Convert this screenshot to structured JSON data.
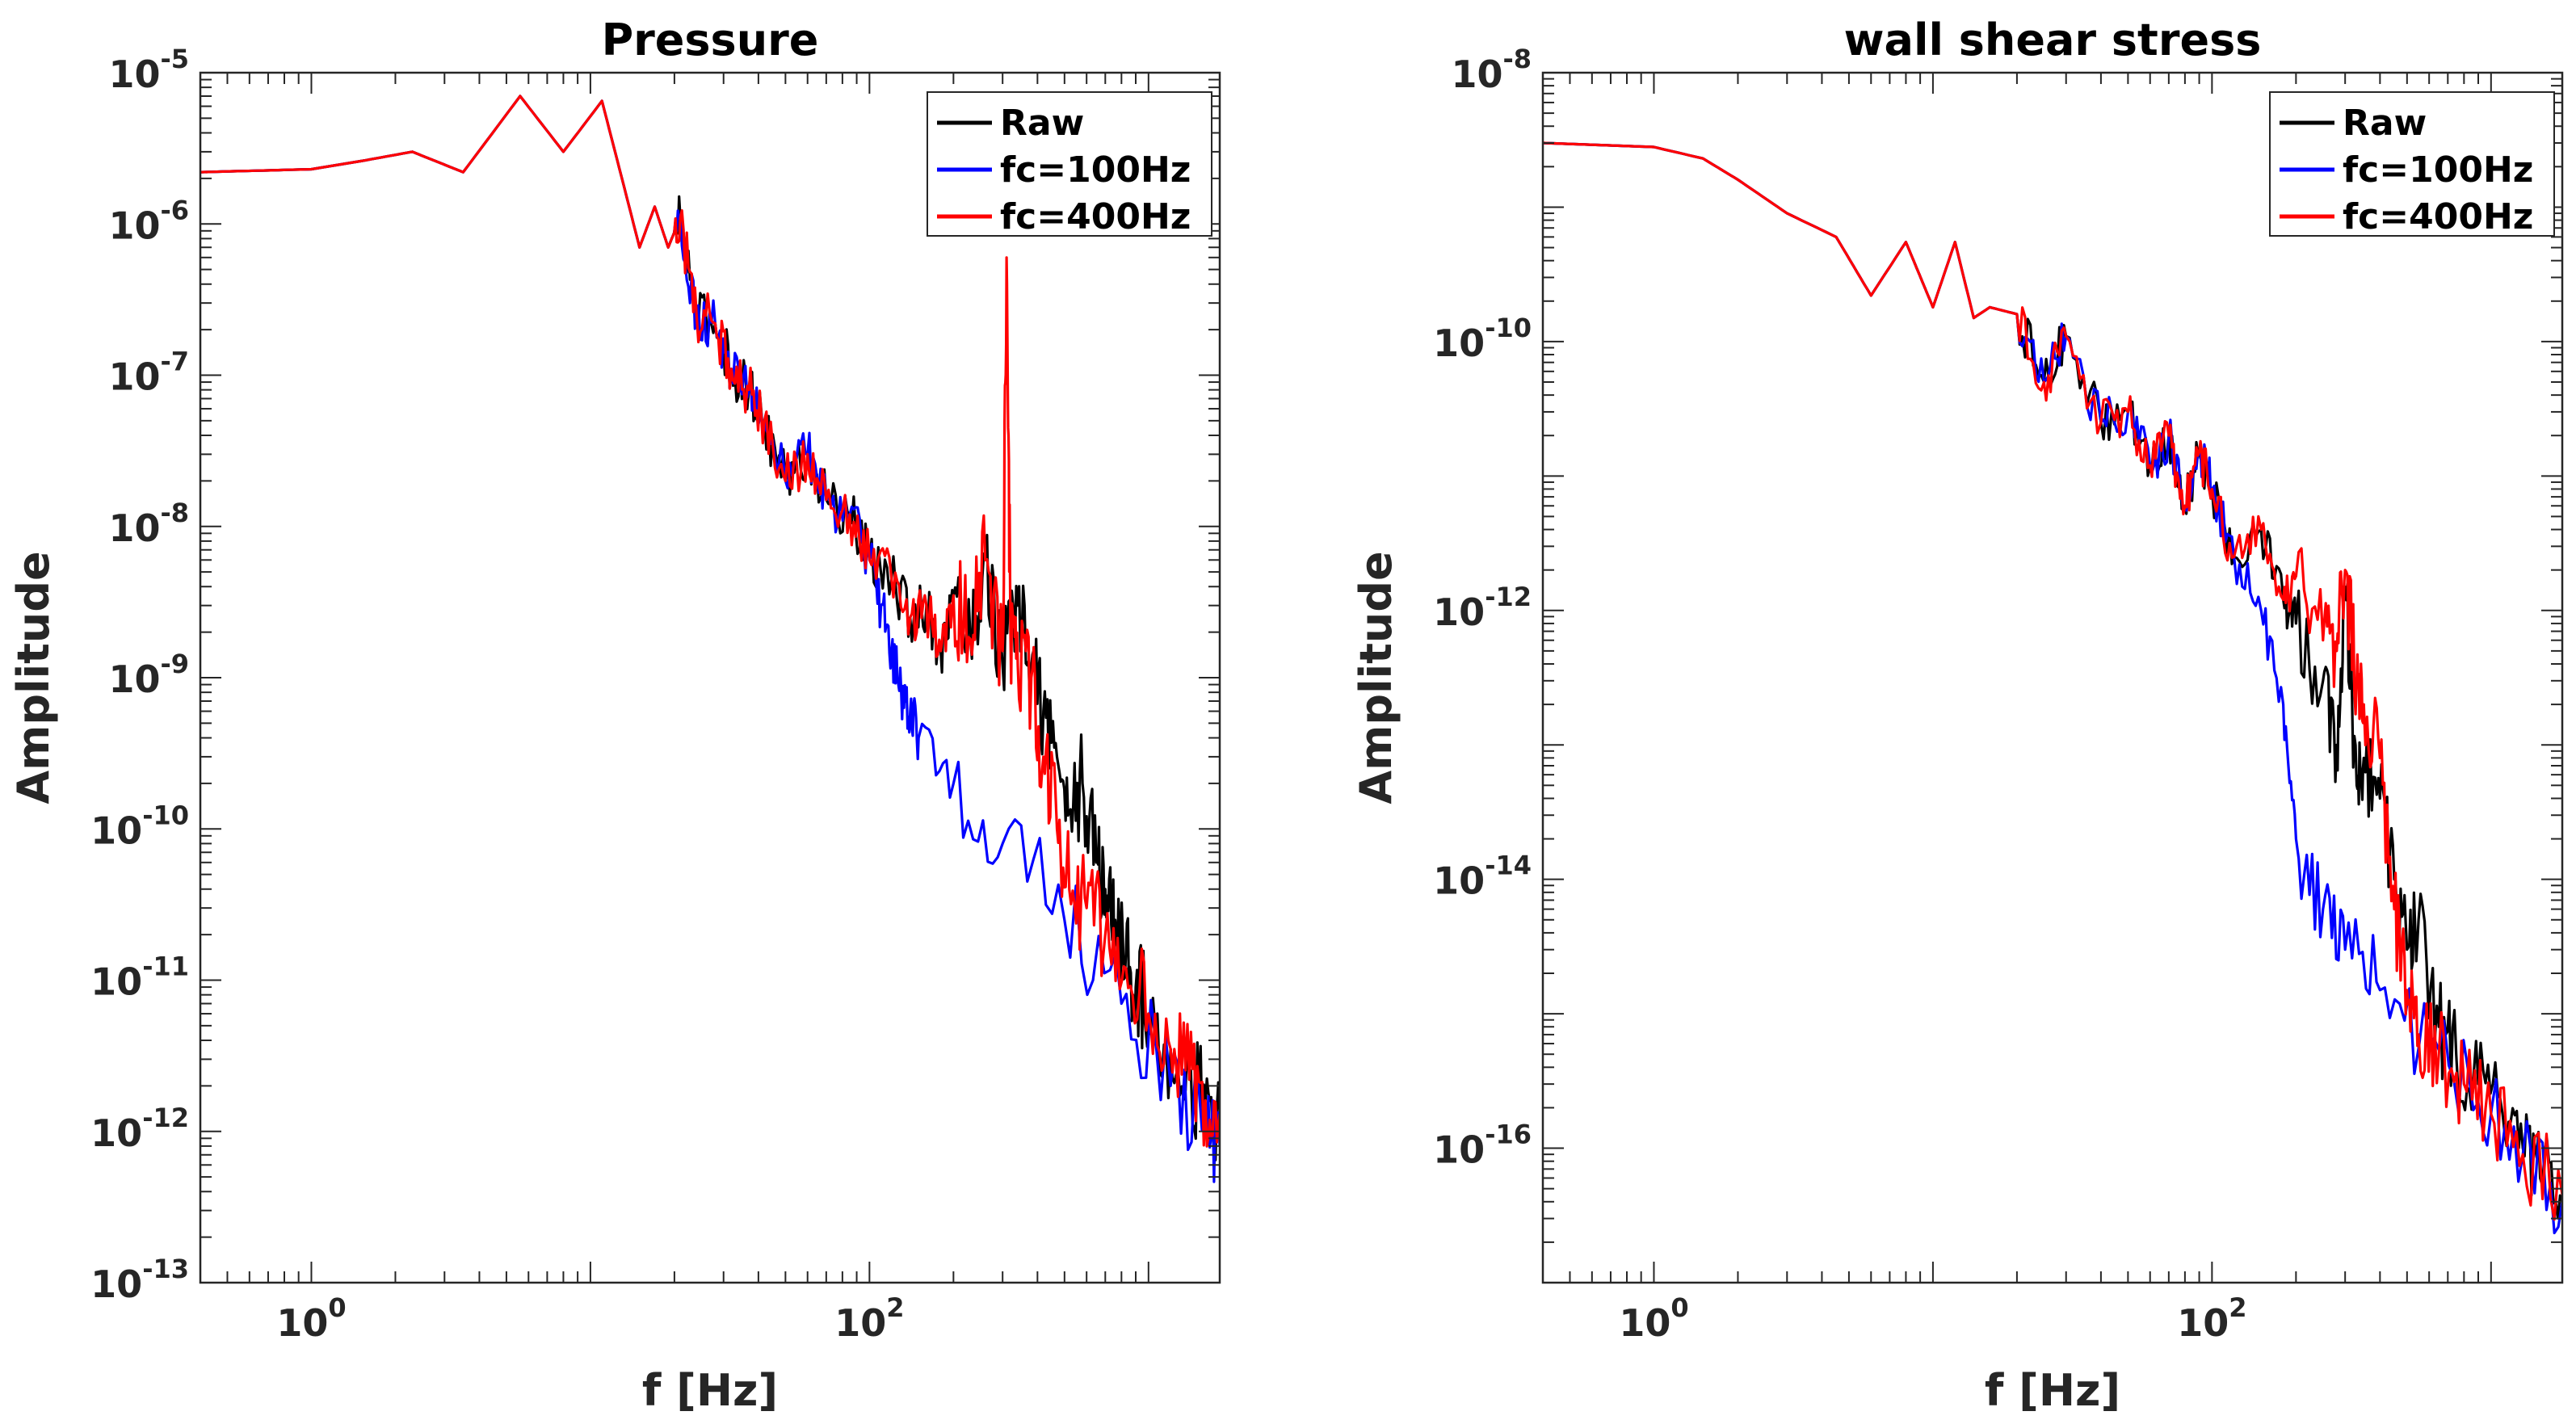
{
  "colors": {
    "raw": "#000000",
    "fc100": "#0000ff",
    "fc400": "#ff0000",
    "axis": "#262626"
  },
  "chart_data": [
    {
      "type": "line",
      "title": "Pressure",
      "xlabel": "f [Hz]",
      "ylabel": "Amplitude",
      "xscale": "log",
      "yscale": "log",
      "xlim": [
        0.4,
        1800
      ],
      "ylim": [
        1e-13,
        1e-05
      ],
      "xticks": [
        {
          "base": "10",
          "exp": "0",
          "value": 1
        },
        {
          "base": "10",
          "exp": "2",
          "value": 100
        }
      ],
      "yticks": [
        {
          "base": "10",
          "exp": "-13",
          "value": 1e-13
        },
        {
          "base": "10",
          "exp": "-12",
          "value": 1e-12
        },
        {
          "base": "10",
          "exp": "-11",
          "value": 1e-11
        },
        {
          "base": "10",
          "exp": "-10",
          "value": 1e-10
        },
        {
          "base": "10",
          "exp": "-9",
          "value": 1e-09
        },
        {
          "base": "10",
          "exp": "-8",
          "value": 1e-08
        },
        {
          "base": "10",
          "exp": "-7",
          "value": 1e-07
        },
        {
          "base": "10",
          "exp": "-6",
          "value": 1e-06
        },
        {
          "base": "10",
          "exp": "-5",
          "value": 1e-05
        }
      ],
      "legend": {
        "position": "top-right",
        "entries": [
          "Raw",
          "fc=100Hz",
          "fc=400Hz"
        ]
      },
      "grid": false,
      "series": [
        {
          "name": "Raw",
          "x": [
            0.4,
            1,
            1.5,
            2.3,
            3.5,
            5.6,
            8,
            11,
            13.5,
            15,
            17,
            19,
            21,
            24,
            28,
            32,
            37,
            42,
            50,
            60,
            70,
            85,
            100,
            120,
            140,
            160,
            180,
            200,
            230,
            260,
            300,
            340,
            380,
            420,
            470,
            520,
            580,
            650,
            700,
            760,
            830,
            900,
            1000,
            1200,
            1400,
            1600,
            1800
          ],
          "y": [
            2.2e-06,
            2.3e-06,
            2.6e-06,
            3e-06,
            2.2e-06,
            7e-06,
            3e-06,
            6.5e-06,
            1.5e-06,
            7e-07,
            1.3e-06,
            7e-07,
            1.1e-06,
            2.5e-07,
            2.2e-07,
            1.1e-07,
            8e-08,
            5e-08,
            2e-08,
            3e-08,
            1.5e-08,
            1.2e-08,
            6e-09,
            4.5e-09,
            2.5e-09,
            3e-09,
            1.5e-09,
            3.5e-09,
            1.8e-09,
            6e-09,
            1.2e-09,
            3e-09,
            1.2e-09,
            6e-10,
            3e-10,
            1.3e-10,
            2e-10,
            6e-11,
            4e-11,
            2.5e-11,
            1.5e-11,
            9e-12,
            6e-12,
            3.5e-12,
            2.2e-12,
            1.6e-12,
            1.3e-12
          ]
        },
        {
          "name": "fc=100Hz",
          "x": [
            0.4,
            1,
            1.5,
            2.3,
            3.5,
            5.6,
            8,
            11,
            13.5,
            15,
            17,
            19,
            21,
            24,
            28,
            32,
            37,
            42,
            50,
            60,
            70,
            85,
            100,
            110,
            120,
            130,
            140,
            150,
            200,
            300,
            500,
            800,
            1200,
            1600,
            1800
          ],
          "y": [
            2.2e-06,
            2.3e-06,
            2.6e-06,
            3e-06,
            2.2e-06,
            7e-06,
            3e-06,
            6.5e-06,
            1.5e-06,
            7e-07,
            1.3e-06,
            7e-07,
            1.1e-06,
            2.5e-07,
            2.2e-07,
            1.1e-07,
            8e-08,
            5e-08,
            2e-08,
            3e-08,
            1.5e-08,
            1.2e-08,
            6e-09,
            3e-09,
            1.5e-09,
            8e-10,
            6e-10,
            4e-10,
            2e-10,
            8e-11,
            2.5e-11,
            7e-12,
            2e-12,
            1.1e-12,
            8e-13
          ]
        },
        {
          "name": "fc=400Hz",
          "x": [
            0.4,
            1,
            1.5,
            2.3,
            3.5,
            5.6,
            8,
            11,
            13.5,
            15,
            17,
            19,
            21,
            24,
            28,
            32,
            37,
            42,
            50,
            60,
            70,
            85,
            100,
            120,
            140,
            160,
            180,
            200,
            230,
            260,
            300,
            310,
            320,
            340,
            380,
            420,
            470,
            520,
            600,
            700,
            830,
            1000,
            1200,
            1400,
            1600,
            1800
          ],
          "y": [
            2.2e-06,
            2.3e-06,
            2.6e-06,
            3e-06,
            2.2e-06,
            7e-06,
            3e-06,
            6.5e-06,
            1.5e-06,
            7e-07,
            1.3e-06,
            7e-07,
            1.1e-06,
            2.5e-07,
            2.2e-07,
            1.1e-07,
            8e-08,
            5e-08,
            2e-08,
            3e-08,
            1.5e-08,
            1.2e-08,
            6e-09,
            4.5e-09,
            2.5e-09,
            3e-09,
            1.5e-09,
            3.5e-09,
            1.8e-09,
            6e-09,
            1.5e-09,
            6e-07,
            2e-09,
            1.2e-09,
            1e-09,
            3e-10,
            1e-10,
            4e-11,
            3e-11,
            2e-11,
            1.2e-11,
            6e-12,
            3.5e-12,
            2.2e-12,
            1.6e-12,
            1.3e-12
          ]
        }
      ]
    },
    {
      "type": "line",
      "title": "wall shear stress",
      "xlabel": "f [Hz]",
      "ylabel": "Amplitude",
      "xscale": "log",
      "yscale": "log",
      "xlim": [
        0.4,
        1800
      ],
      "ylim": [
        1e-17,
        1e-08
      ],
      "xticks": [
        {
          "base": "10",
          "exp": "0",
          "value": 1
        },
        {
          "base": "10",
          "exp": "2",
          "value": 100
        }
      ],
      "yticks": [
        {
          "base": "10",
          "exp": "-16",
          "value": 1e-16
        },
        {
          "base": "10",
          "exp": "-14",
          "value": 1e-14
        },
        {
          "base": "10",
          "exp": "-12",
          "value": 1e-12
        },
        {
          "base": "10",
          "exp": "-10",
          "value": 1e-10
        },
        {
          "base": "10",
          "exp": "-8",
          "value": 1e-08
        }
      ],
      "legend": {
        "position": "top-right",
        "entries": [
          "Raw",
          "fc=100Hz",
          "fc=400Hz"
        ]
      },
      "grid": false,
      "series": [
        {
          "name": "Raw",
          "x": [
            0.4,
            1,
            1.5,
            2,
            3,
            4.5,
            6,
            8,
            10,
            12,
            14,
            16,
            20,
            25,
            30,
            40,
            50,
            60,
            70,
            80,
            90,
            100,
            120,
            150,
            180,
            200,
            250,
            280,
            300,
            330,
            350,
            400,
            450,
            500,
            550,
            650,
            750,
            900,
            1100,
            1300,
            1500,
            1800
          ],
          "y": [
            3e-09,
            2.8e-09,
            2.3e-09,
            1.6e-09,
            9e-10,
            6e-10,
            2.2e-10,
            5.5e-10,
            1.8e-10,
            5.5e-10,
            1.5e-10,
            1.8e-10,
            1.6e-10,
            5e-11,
            1.1e-10,
            2.5e-11,
            3e-11,
            1.2e-11,
            2e-11,
            6e-12,
            1.5e-11,
            8e-12,
            2.5e-12,
            4e-12,
            1.2e-12,
            8e-13,
            3e-13,
            1e-13,
            1.5e-12,
            5e-14,
            8e-14,
            4e-14,
            1e-14,
            3e-15,
            5e-15,
            8e-16,
            5e-16,
            3e-16,
            1.8e-16,
            1e-16,
            6e-17,
            4e-17
          ]
        },
        {
          "name": "fc=100Hz",
          "x": [
            0.4,
            1,
            1.5,
            2,
            3,
            4.5,
            6,
            8,
            10,
            12,
            14,
            16,
            20,
            25,
            30,
            40,
            50,
            60,
            70,
            80,
            90,
            100,
            120,
            150,
            180,
            200,
            250,
            300,
            400,
            600,
            900,
            1300,
            1800
          ],
          "y": [
            3e-09,
            2.8e-09,
            2.3e-09,
            1.6e-09,
            9e-10,
            6e-10,
            2.2e-10,
            5.5e-10,
            1.8e-10,
            5.5e-10,
            1.5e-10,
            1.8e-10,
            1.6e-10,
            5e-11,
            1.1e-10,
            2.5e-11,
            3e-11,
            1.2e-11,
            2e-11,
            6e-12,
            1.5e-11,
            8e-12,
            2.5e-12,
            1e-12,
            2e-13,
            2e-14,
            6e-15,
            3e-15,
            1.5e-15,
            6e-16,
            2.2e-16,
            9e-17,
            4e-17
          ]
        },
        {
          "name": "fc=400Hz",
          "x": [
            0.4,
            1,
            1.5,
            2,
            3,
            4.5,
            6,
            8,
            10,
            12,
            14,
            16,
            20,
            25,
            30,
            40,
            50,
            60,
            70,
            80,
            90,
            100,
            120,
            150,
            180,
            200,
            250,
            280,
            300,
            330,
            350,
            400,
            450,
            500,
            550,
            650,
            800,
            1000,
            1300,
            1800
          ],
          "y": [
            3e-09,
            2.8e-09,
            2.3e-09,
            1.6e-09,
            9e-10,
            6e-10,
            2.2e-10,
            5.5e-10,
            1.8e-10,
            5.5e-10,
            1.5e-10,
            1.8e-10,
            1.6e-10,
            5e-11,
            1.1e-10,
            2.5e-11,
            3e-11,
            1.2e-11,
            2e-11,
            6e-12,
            1.5e-11,
            8e-12,
            2.5e-12,
            4e-12,
            1.2e-12,
            1.8e-12,
            6e-13,
            5e-13,
            2e-12,
            3e-13,
            2e-13,
            8e-14,
            6e-15,
            1.5e-15,
            7e-16,
            5e-16,
            3e-16,
            1.8e-16,
            9e-17,
            4.5e-17
          ]
        }
      ]
    }
  ]
}
